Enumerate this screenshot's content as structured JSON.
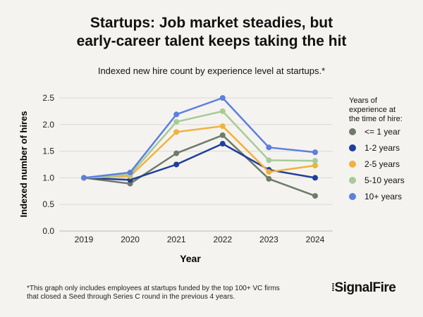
{
  "chart_data": {
    "type": "line",
    "title": "Startups: Job market steadies, but early-career talent keeps taking the hit",
    "title_lines": [
      "Startups: Job market steadies, but",
      "early-career talent keeps taking the hit"
    ],
    "subtitle": "Indexed new hire count by experience level at startups.*",
    "xlabel": "Year",
    "ylabel": "Indexed number of hires",
    "x": [
      "2019",
      "2020",
      "2021",
      "2022",
      "2023",
      "2024"
    ],
    "ylim": [
      0,
      2.5
    ],
    "yticks": [
      "0.0",
      "0.5",
      "1.0",
      "1.5",
      "2.0",
      "2.5"
    ],
    "grid": true,
    "legend_title": [
      "Years of",
      "experience at",
      "the time of hire:"
    ],
    "legend_position": "right",
    "series": [
      {
        "name": "<= 1 year",
        "color": "#6e7b6b",
        "values": [
          1.0,
          0.89,
          1.46,
          1.8,
          0.98,
          0.66
        ]
      },
      {
        "name": "1-2 years",
        "color": "#1f3f99",
        "values": [
          1.0,
          0.96,
          1.25,
          1.64,
          1.15,
          1.0
        ]
      },
      {
        "name": "2-5 years",
        "color": "#efb23f",
        "values": [
          1.0,
          1.03,
          1.86,
          1.97,
          1.11,
          1.23
        ]
      },
      {
        "name": "5-10 years",
        "color": "#a7cb97",
        "values": [
          1.0,
          1.06,
          2.05,
          2.25,
          1.33,
          1.32
        ]
      },
      {
        "name": "10+ years",
        "color": "#5c80df",
        "values": [
          1.0,
          1.1,
          2.19,
          2.5,
          1.57,
          1.48
        ]
      }
    ]
  },
  "footnote": [
    "*This graph only includes employees at startups funded by the top 100+ VC firms",
    "that closed a Seed through Series C round in the previous 4 years."
  ],
  "logo": "SignalFire"
}
